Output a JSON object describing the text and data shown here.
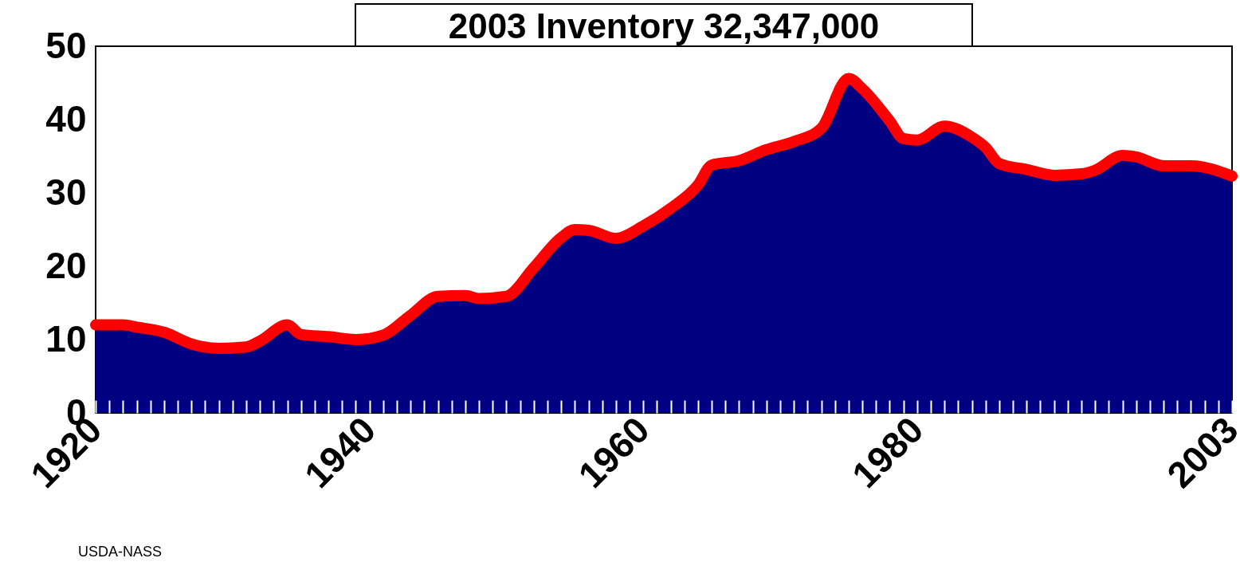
{
  "chart_data": {
    "type": "area",
    "title": "2003 Inventory 32,347,000",
    "annotations": [
      "USDA-NASS"
    ],
    "x": [
      1920,
      1922,
      1923,
      1925,
      1927,
      1929,
      1931,
      1932,
      1934,
      1935,
      1937,
      1939,
      1941,
      1943,
      1945,
      1947,
      1948,
      1950,
      1952,
      1954,
      1955,
      1956,
      1958,
      1960,
      1962,
      1964,
      1965,
      1967,
      1969,
      1971,
      1973,
      1975,
      1976,
      1978,
      1979,
      1980,
      1982,
      1984,
      1985,
      1986,
      1988,
      1990,
      1992,
      1993,
      1995,
      1996,
      1998,
      2000,
      2003
    ],
    "series": [
      {
        "type": "area",
        "color": "#000080",
        "values": [
          12.0,
          12.0,
          11.7,
          11.0,
          9.4,
          8.8,
          9.0,
          9.8,
          12.0,
          10.7,
          10.4,
          10.0,
          10.6,
          13.3,
          15.9,
          16.0,
          15.6,
          15.9,
          19.8,
          23.9,
          25.0,
          24.9,
          23.8,
          25.5,
          27.9,
          31.1,
          33.8,
          34.4,
          35.9,
          37.0,
          38.8,
          45.6,
          44.2,
          39.8,
          37.4,
          37.2,
          39.1,
          37.6,
          36.2,
          34.0,
          33.2,
          32.4,
          32.6,
          33.1,
          35.1,
          34.9,
          33.7,
          33.7,
          32.3
        ]
      },
      {
        "type": "line",
        "color": "#ff0000",
        "values": [
          12.0,
          12.0,
          11.7,
          11.0,
          9.4,
          8.8,
          9.0,
          9.8,
          12.0,
          10.7,
          10.4,
          10.0,
          10.6,
          13.3,
          15.9,
          16.0,
          15.6,
          15.9,
          19.8,
          23.9,
          25.0,
          24.9,
          23.8,
          25.5,
          27.9,
          31.1,
          33.8,
          34.4,
          35.9,
          37.0,
          38.8,
          45.6,
          44.2,
          39.8,
          37.4,
          37.2,
          39.1,
          37.6,
          36.2,
          34.0,
          33.2,
          32.4,
          32.6,
          33.1,
          35.1,
          34.9,
          33.7,
          33.7,
          32.3
        ]
      }
    ],
    "xlim": [
      1920,
      2003
    ],
    "xticks": [
      1920,
      {
        "value": 1921,
        "label": null
      },
      {
        "value": 1922,
        "label": null
      },
      {
        "value": 1923,
        "label": null
      },
      {
        "value": 1924,
        "label": null
      },
      {
        "value": 1925,
        "label": null
      },
      {
        "value": 1926,
        "label": null
      },
      {
        "value": 1927,
        "label": null
      },
      {
        "value": 1928,
        "label": null
      },
      {
        "value": 1929,
        "label": null
      },
      {
        "value": 1930,
        "label": null
      },
      {
        "value": 1931,
        "label": null
      },
      {
        "value": 1932,
        "label": null
      },
      {
        "value": 1933,
        "label": null
      },
      {
        "value": 1934,
        "label": null
      },
      {
        "value": 1935,
        "label": null
      },
      {
        "value": 1936,
        "label": null
      },
      {
        "value": 1937,
        "label": null
      },
      {
        "value": 1938,
        "label": null
      },
      {
        "value": 1939,
        "label": null
      },
      1940,
      {
        "value": 1941,
        "label": null
      },
      {
        "value": 1942,
        "label": null
      },
      {
        "value": 1943,
        "label": null
      },
      {
        "value": 1944,
        "label": null
      },
      {
        "value": 1945,
        "label": null
      },
      {
        "value": 1946,
        "label": null
      },
      {
        "value": 1947,
        "label": null
      },
      {
        "value": 1948,
        "label": null
      },
      {
        "value": 1949,
        "label": null
      },
      {
        "value": 1950,
        "label": null
      },
      {
        "value": 1951,
        "label": null
      },
      {
        "value": 1952,
        "label": null
      },
      {
        "value": 1953,
        "label": null
      },
      {
        "value": 1954,
        "label": null
      },
      {
        "value": 1955,
        "label": null
      },
      {
        "value": 1956,
        "label": null
      },
      {
        "value": 1957,
        "label": null
      },
      {
        "value": 1958,
        "label": null
      },
      {
        "value": 1959,
        "label": null
      },
      1960,
      {
        "value": 1961,
        "label": null
      },
      {
        "value": 1962,
        "label": null
      },
      {
        "value": 1963,
        "label": null
      },
      {
        "value": 1964,
        "label": null
      },
      {
        "value": 1965,
        "label": null
      },
      {
        "value": 1966,
        "label": null
      },
      {
        "value": 1967,
        "label": null
      },
      {
        "value": 1968,
        "label": null
      },
      {
        "value": 1969,
        "label": null
      },
      {
        "value": 1970,
        "label": null
      },
      {
        "value": 1971,
        "label": null
      },
      {
        "value": 1972,
        "label": null
      },
      {
        "value": 1973,
        "label": null
      },
      {
        "value": 1974,
        "label": null
      },
      {
        "value": 1975,
        "label": null
      },
      {
        "value": 1976,
        "label": null
      },
      {
        "value": 1977,
        "label": null
      },
      {
        "value": 1978,
        "label": null
      },
      {
        "value": 1979,
        "label": null
      },
      1980,
      {
        "value": 1981,
        "label": null
      },
      {
        "value": 1982,
        "label": null
      },
      {
        "value": 1983,
        "label": null
      },
      {
        "value": 1984,
        "label": null
      },
      {
        "value": 1985,
        "label": null
      },
      {
        "value": 1986,
        "label": null
      },
      {
        "value": 1987,
        "label": null
      },
      {
        "value": 1988,
        "label": null
      },
      {
        "value": 1989,
        "label": null
      },
      {
        "value": 1990,
        "label": null
      },
      {
        "value": 1991,
        "label": null
      },
      {
        "value": 1992,
        "label": null
      },
      {
        "value": 1993,
        "label": null
      },
      {
        "value": 1994,
        "label": null
      },
      {
        "value": 1995,
        "label": null
      },
      {
        "value": 1996,
        "label": null
      },
      {
        "value": 1997,
        "label": null
      },
      {
        "value": 1998,
        "label": null
      },
      {
        "value": 1999,
        "label": null
      },
      {
        "value": 2000,
        "label": null
      },
      {
        "value": 2001,
        "label": null
      },
      {
        "value": 2002,
        "label": null
      },
      2003
    ],
    "ylim": [
      0,
      50
    ],
    "yticks": [
      0,
      10,
      20,
      30,
      40,
      50
    ],
    "grid": false
  }
}
